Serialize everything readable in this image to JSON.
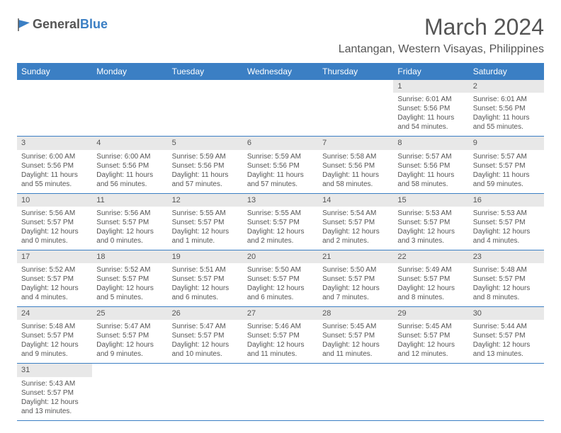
{
  "logo": {
    "text1": "General",
    "text2": "Blue"
  },
  "title": "March 2024",
  "location": "Lantangan, Western Visayas, Philippines",
  "colors": {
    "header_bg": "#3b7fc4",
    "header_text": "#ffffff",
    "daynum_bg": "#e8e8e8",
    "border": "#3b7fc4",
    "body_text": "#555555",
    "background": "#ffffff"
  },
  "typography": {
    "title_fontsize": 32,
    "location_fontsize": 16,
    "dayheader_fontsize": 12,
    "cell_fontsize": 10
  },
  "day_headers": [
    "Sunday",
    "Monday",
    "Tuesday",
    "Wednesday",
    "Thursday",
    "Friday",
    "Saturday"
  ],
  "weeks": [
    [
      null,
      null,
      null,
      null,
      null,
      {
        "n": "1",
        "sr": "Sunrise: 6:01 AM",
        "ss": "Sunset: 5:56 PM",
        "dl": "Daylight: 11 hours and 54 minutes."
      },
      {
        "n": "2",
        "sr": "Sunrise: 6:01 AM",
        "ss": "Sunset: 5:56 PM",
        "dl": "Daylight: 11 hours and 55 minutes."
      }
    ],
    [
      {
        "n": "3",
        "sr": "Sunrise: 6:00 AM",
        "ss": "Sunset: 5:56 PM",
        "dl": "Daylight: 11 hours and 55 minutes."
      },
      {
        "n": "4",
        "sr": "Sunrise: 6:00 AM",
        "ss": "Sunset: 5:56 PM",
        "dl": "Daylight: 11 hours and 56 minutes."
      },
      {
        "n": "5",
        "sr": "Sunrise: 5:59 AM",
        "ss": "Sunset: 5:56 PM",
        "dl": "Daylight: 11 hours and 57 minutes."
      },
      {
        "n": "6",
        "sr": "Sunrise: 5:59 AM",
        "ss": "Sunset: 5:56 PM",
        "dl": "Daylight: 11 hours and 57 minutes."
      },
      {
        "n": "7",
        "sr": "Sunrise: 5:58 AM",
        "ss": "Sunset: 5:56 PM",
        "dl": "Daylight: 11 hours and 58 minutes."
      },
      {
        "n": "8",
        "sr": "Sunrise: 5:57 AM",
        "ss": "Sunset: 5:56 PM",
        "dl": "Daylight: 11 hours and 58 minutes."
      },
      {
        "n": "9",
        "sr": "Sunrise: 5:57 AM",
        "ss": "Sunset: 5:57 PM",
        "dl": "Daylight: 11 hours and 59 minutes."
      }
    ],
    [
      {
        "n": "10",
        "sr": "Sunrise: 5:56 AM",
        "ss": "Sunset: 5:57 PM",
        "dl": "Daylight: 12 hours and 0 minutes."
      },
      {
        "n": "11",
        "sr": "Sunrise: 5:56 AM",
        "ss": "Sunset: 5:57 PM",
        "dl": "Daylight: 12 hours and 0 minutes."
      },
      {
        "n": "12",
        "sr": "Sunrise: 5:55 AM",
        "ss": "Sunset: 5:57 PM",
        "dl": "Daylight: 12 hours and 1 minute."
      },
      {
        "n": "13",
        "sr": "Sunrise: 5:55 AM",
        "ss": "Sunset: 5:57 PM",
        "dl": "Daylight: 12 hours and 2 minutes."
      },
      {
        "n": "14",
        "sr": "Sunrise: 5:54 AM",
        "ss": "Sunset: 5:57 PM",
        "dl": "Daylight: 12 hours and 2 minutes."
      },
      {
        "n": "15",
        "sr": "Sunrise: 5:53 AM",
        "ss": "Sunset: 5:57 PM",
        "dl": "Daylight: 12 hours and 3 minutes."
      },
      {
        "n": "16",
        "sr": "Sunrise: 5:53 AM",
        "ss": "Sunset: 5:57 PM",
        "dl": "Daylight: 12 hours and 4 minutes."
      }
    ],
    [
      {
        "n": "17",
        "sr": "Sunrise: 5:52 AM",
        "ss": "Sunset: 5:57 PM",
        "dl": "Daylight: 12 hours and 4 minutes."
      },
      {
        "n": "18",
        "sr": "Sunrise: 5:52 AM",
        "ss": "Sunset: 5:57 PM",
        "dl": "Daylight: 12 hours and 5 minutes."
      },
      {
        "n": "19",
        "sr": "Sunrise: 5:51 AM",
        "ss": "Sunset: 5:57 PM",
        "dl": "Daylight: 12 hours and 6 minutes."
      },
      {
        "n": "20",
        "sr": "Sunrise: 5:50 AM",
        "ss": "Sunset: 5:57 PM",
        "dl": "Daylight: 12 hours and 6 minutes."
      },
      {
        "n": "21",
        "sr": "Sunrise: 5:50 AM",
        "ss": "Sunset: 5:57 PM",
        "dl": "Daylight: 12 hours and 7 minutes."
      },
      {
        "n": "22",
        "sr": "Sunrise: 5:49 AM",
        "ss": "Sunset: 5:57 PM",
        "dl": "Daylight: 12 hours and 8 minutes."
      },
      {
        "n": "23",
        "sr": "Sunrise: 5:48 AM",
        "ss": "Sunset: 5:57 PM",
        "dl": "Daylight: 12 hours and 8 minutes."
      }
    ],
    [
      {
        "n": "24",
        "sr": "Sunrise: 5:48 AM",
        "ss": "Sunset: 5:57 PM",
        "dl": "Daylight: 12 hours and 9 minutes."
      },
      {
        "n": "25",
        "sr": "Sunrise: 5:47 AM",
        "ss": "Sunset: 5:57 PM",
        "dl": "Daylight: 12 hours and 9 minutes."
      },
      {
        "n": "26",
        "sr": "Sunrise: 5:47 AM",
        "ss": "Sunset: 5:57 PM",
        "dl": "Daylight: 12 hours and 10 minutes."
      },
      {
        "n": "27",
        "sr": "Sunrise: 5:46 AM",
        "ss": "Sunset: 5:57 PM",
        "dl": "Daylight: 12 hours and 11 minutes."
      },
      {
        "n": "28",
        "sr": "Sunrise: 5:45 AM",
        "ss": "Sunset: 5:57 PM",
        "dl": "Daylight: 12 hours and 11 minutes."
      },
      {
        "n": "29",
        "sr": "Sunrise: 5:45 AM",
        "ss": "Sunset: 5:57 PM",
        "dl": "Daylight: 12 hours and 12 minutes."
      },
      {
        "n": "30",
        "sr": "Sunrise: 5:44 AM",
        "ss": "Sunset: 5:57 PM",
        "dl": "Daylight: 12 hours and 13 minutes."
      }
    ],
    [
      {
        "n": "31",
        "sr": "Sunrise: 5:43 AM",
        "ss": "Sunset: 5:57 PM",
        "dl": "Daylight: 12 hours and 13 minutes."
      },
      null,
      null,
      null,
      null,
      null,
      null
    ]
  ]
}
